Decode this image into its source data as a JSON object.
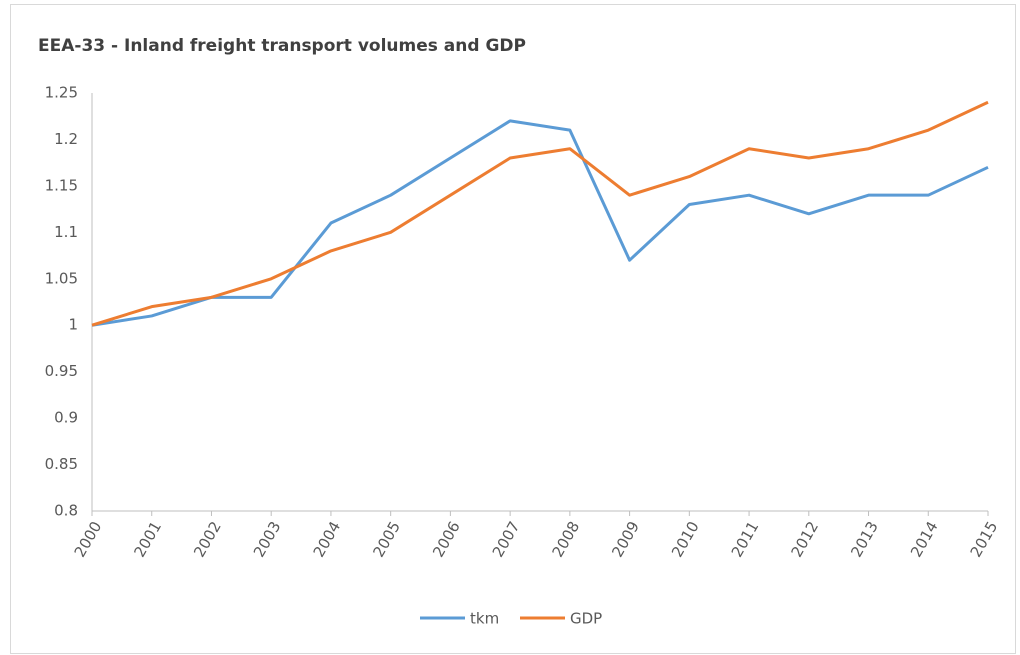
{
  "chart_data": {
    "type": "line",
    "title": "EEA-33 - Inland freight transport volumes and GDP",
    "categories": [
      "2000",
      "2001",
      "2002",
      "2003",
      "2004",
      "2005",
      "2006",
      "2007",
      "2008",
      "2009",
      "2010",
      "2011",
      "2012",
      "2013",
      "2014",
      "2015"
    ],
    "series": [
      {
        "name": "tkm",
        "color": "#5b9bd5",
        "values": [
          1,
          1.01,
          1.03,
          1.03,
          1.11,
          1.14,
          1.18,
          1.22,
          1.21,
          1.07,
          1.13,
          1.14,
          1.12,
          1.14,
          1.14,
          1.17
        ]
      },
      {
        "name": "GDP",
        "color": "#ed7d31",
        "values": [
          1,
          1.02,
          1.03,
          1.05,
          1.08,
          1.1,
          1.14,
          1.18,
          1.19,
          1.14,
          1.16,
          1.19,
          1.18,
          1.19,
          1.21,
          1.24
        ]
      }
    ],
    "ylim": [
      0.8,
      1.25
    ],
    "yticks": [
      0.8,
      0.85,
      0.9,
      0.95,
      1,
      1.05,
      1.1,
      1.15,
      1.2,
      1.25
    ],
    "grid": false,
    "legend": "bottom"
  }
}
